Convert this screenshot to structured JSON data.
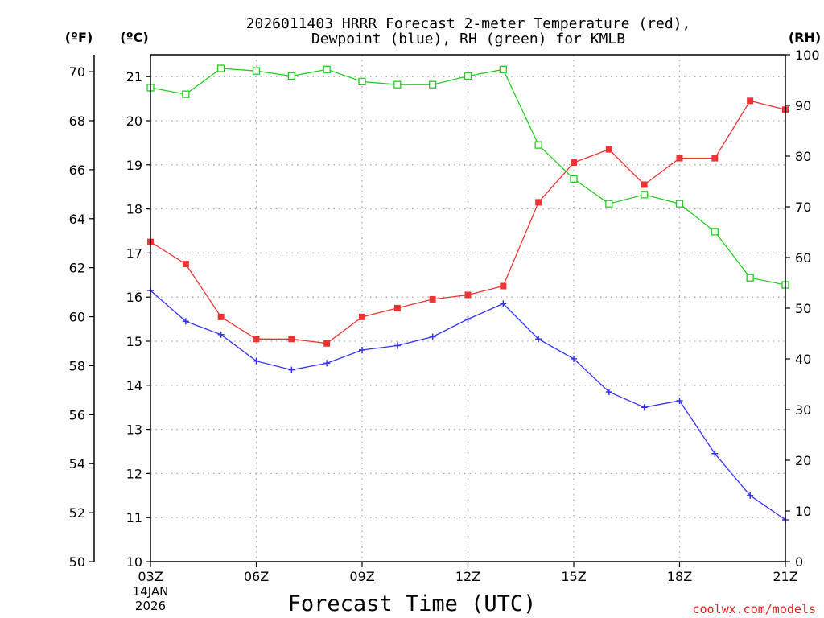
{
  "chart_data": {
    "type": "line",
    "title_line1": "2026011403 HRRR Forecast 2-meter Temperature (red),",
    "title_line2": "Dewpoint (blue), RH (green) for KMLB",
    "left_outer_unit": "(ºF)",
    "left_inner_unit": "(ºC)",
    "right_unit": "(RH)",
    "xlabel": "Forecast Time (UTC)",
    "watermark": "coolwx.com/models",
    "date_line1": "14JAN",
    "date_line2": "2026",
    "x_hours_from_03z": [
      0,
      1,
      2,
      3,
      4,
      5,
      6,
      7,
      8,
      9,
      10,
      11,
      12,
      13,
      14,
      15,
      16,
      17,
      18
    ],
    "x_tick_labels": [
      "03Z",
      "06Z",
      "09Z",
      "12Z",
      "15Z",
      "18Z",
      "21Z"
    ],
    "x_tick_positions": [
      0,
      3,
      6,
      9,
      12,
      15,
      18
    ],
    "celsius_ticks": [
      10,
      11,
      12,
      13,
      14,
      15,
      16,
      17,
      18,
      19,
      20,
      21
    ],
    "fahrenheit_ticks": [
      50,
      52,
      54,
      56,
      58,
      60,
      62,
      64,
      66,
      68,
      70
    ],
    "rh_ticks": [
      0,
      10,
      20,
      30,
      40,
      50,
      60,
      70,
      80,
      90,
      100
    ],
    "ylim_celsius": [
      10,
      21.5
    ],
    "ylim_rh": [
      0,
      100
    ],
    "colors": {
      "temperature": "#ee3333",
      "dewpoint": "#3333ee",
      "rh": "#22cc22",
      "grid": "#aaaaaa",
      "watermark": "#dd2222"
    },
    "series": [
      {
        "name": "Temperature",
        "unit": "C",
        "marker": "filled-square",
        "values": [
          17.25,
          16.75,
          15.55,
          15.05,
          15.05,
          14.95,
          15.55,
          15.75,
          15.95,
          16.05,
          16.25,
          18.15,
          19.05,
          19.35,
          18.55,
          19.15,
          19.15,
          20.45,
          20.25
        ]
      },
      {
        "name": "Dewpoint",
        "unit": "C",
        "marker": "plus",
        "values": [
          16.15,
          15.45,
          15.15,
          14.55,
          14.35,
          14.5,
          14.8,
          14.9,
          15.1,
          15.5,
          15.85,
          15.05,
          14.6,
          13.85,
          13.5,
          13.65,
          12.45,
          11.5,
          10.95
        ]
      },
      {
        "name": "RH",
        "unit": "%",
        "marker": "open-square",
        "values": [
          93.5,
          92.2,
          97.3,
          96.8,
          95.8,
          97.1,
          94.7,
          94.1,
          94.1,
          95.8,
          97.1,
          82.2,
          75.5,
          70.6,
          72.4,
          70.6,
          65.1,
          56.0,
          54.6
        ]
      }
    ]
  }
}
